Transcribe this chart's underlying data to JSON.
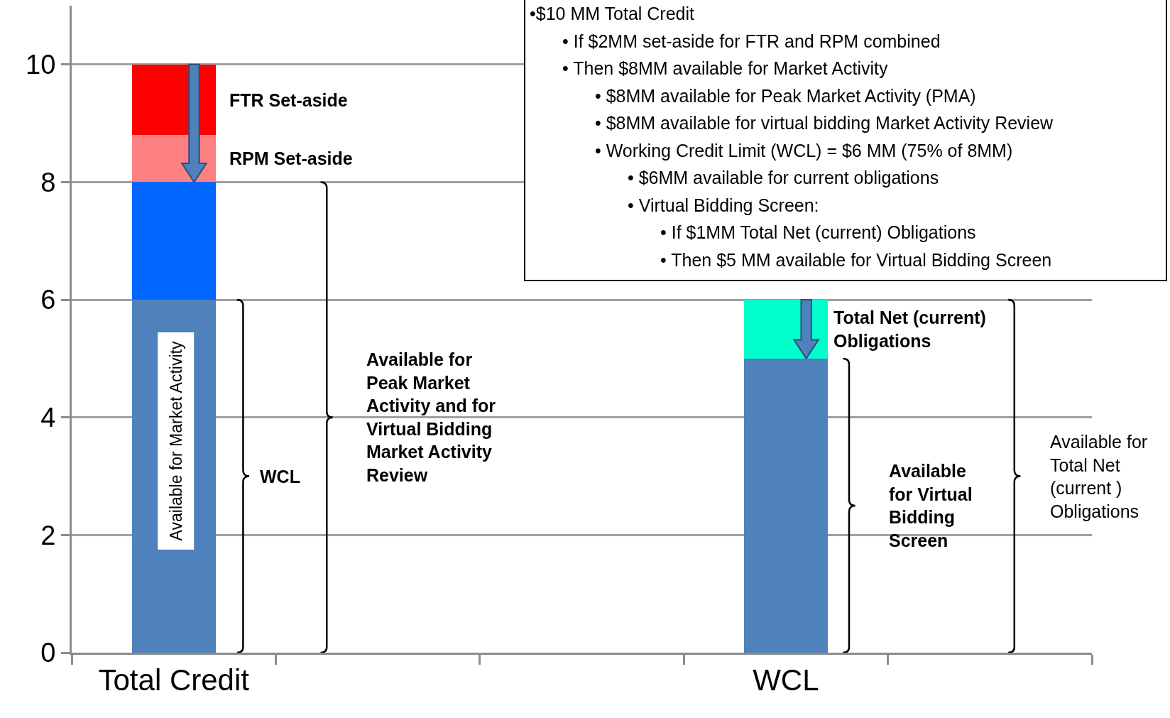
{
  "chart_data": {
    "type": "bar",
    "stacked": true,
    "categories": [
      "Total Credit",
      null,
      null,
      "WCL",
      null
    ],
    "series": [
      {
        "color": "#4f81bd",
        "values": [
          6,
          null,
          null,
          5,
          null
        ]
      },
      {
        "color": "#0066ff",
        "values": [
          2,
          null,
          null,
          null,
          null
        ]
      },
      {
        "color": "#ff8080",
        "values": [
          0.8,
          null,
          null,
          null,
          null
        ]
      },
      {
        "color": "#ff0000",
        "values": [
          1.2,
          null,
          null,
          null,
          null
        ]
      },
      {
        "color": "#00ffcc",
        "values": [
          null,
          null,
          null,
          1,
          null
        ]
      }
    ],
    "ylim": [
      0,
      11
    ],
    "yticks": [
      0,
      2,
      4,
      6,
      8,
      10
    ],
    "grid": "y",
    "annotations": [
      "FTR Set-aside",
      "RPM Set-aside",
      "Available for Market Activity",
      "WCL",
      "Available for Peak Market Activity and for Virtual Bidding Market Activity Review",
      "Total Net (current) Obligations",
      "Available for Virtual Bidding Screen",
      "Available for Total Net (current ) Obligations",
      "•$10 MM Total Credit\n• If $2MM set-aside for FTR and RPM combined\n• Then $8MM available for Market Activity\n• $8MM available for Peak Market Activity (PMA)\n• $8MM available for virtual bidding Market Activity Review\n•  Working Credit Limit (WCL) = $6 MM (75% of 8MM)\n• $6MM available for current obligations\n• Virtual Bidding Screen:\n• If $1MM Total Net (current) Obligations\n• Then $5 MM available for Virtual Bidding Screen"
    ]
  }
}
